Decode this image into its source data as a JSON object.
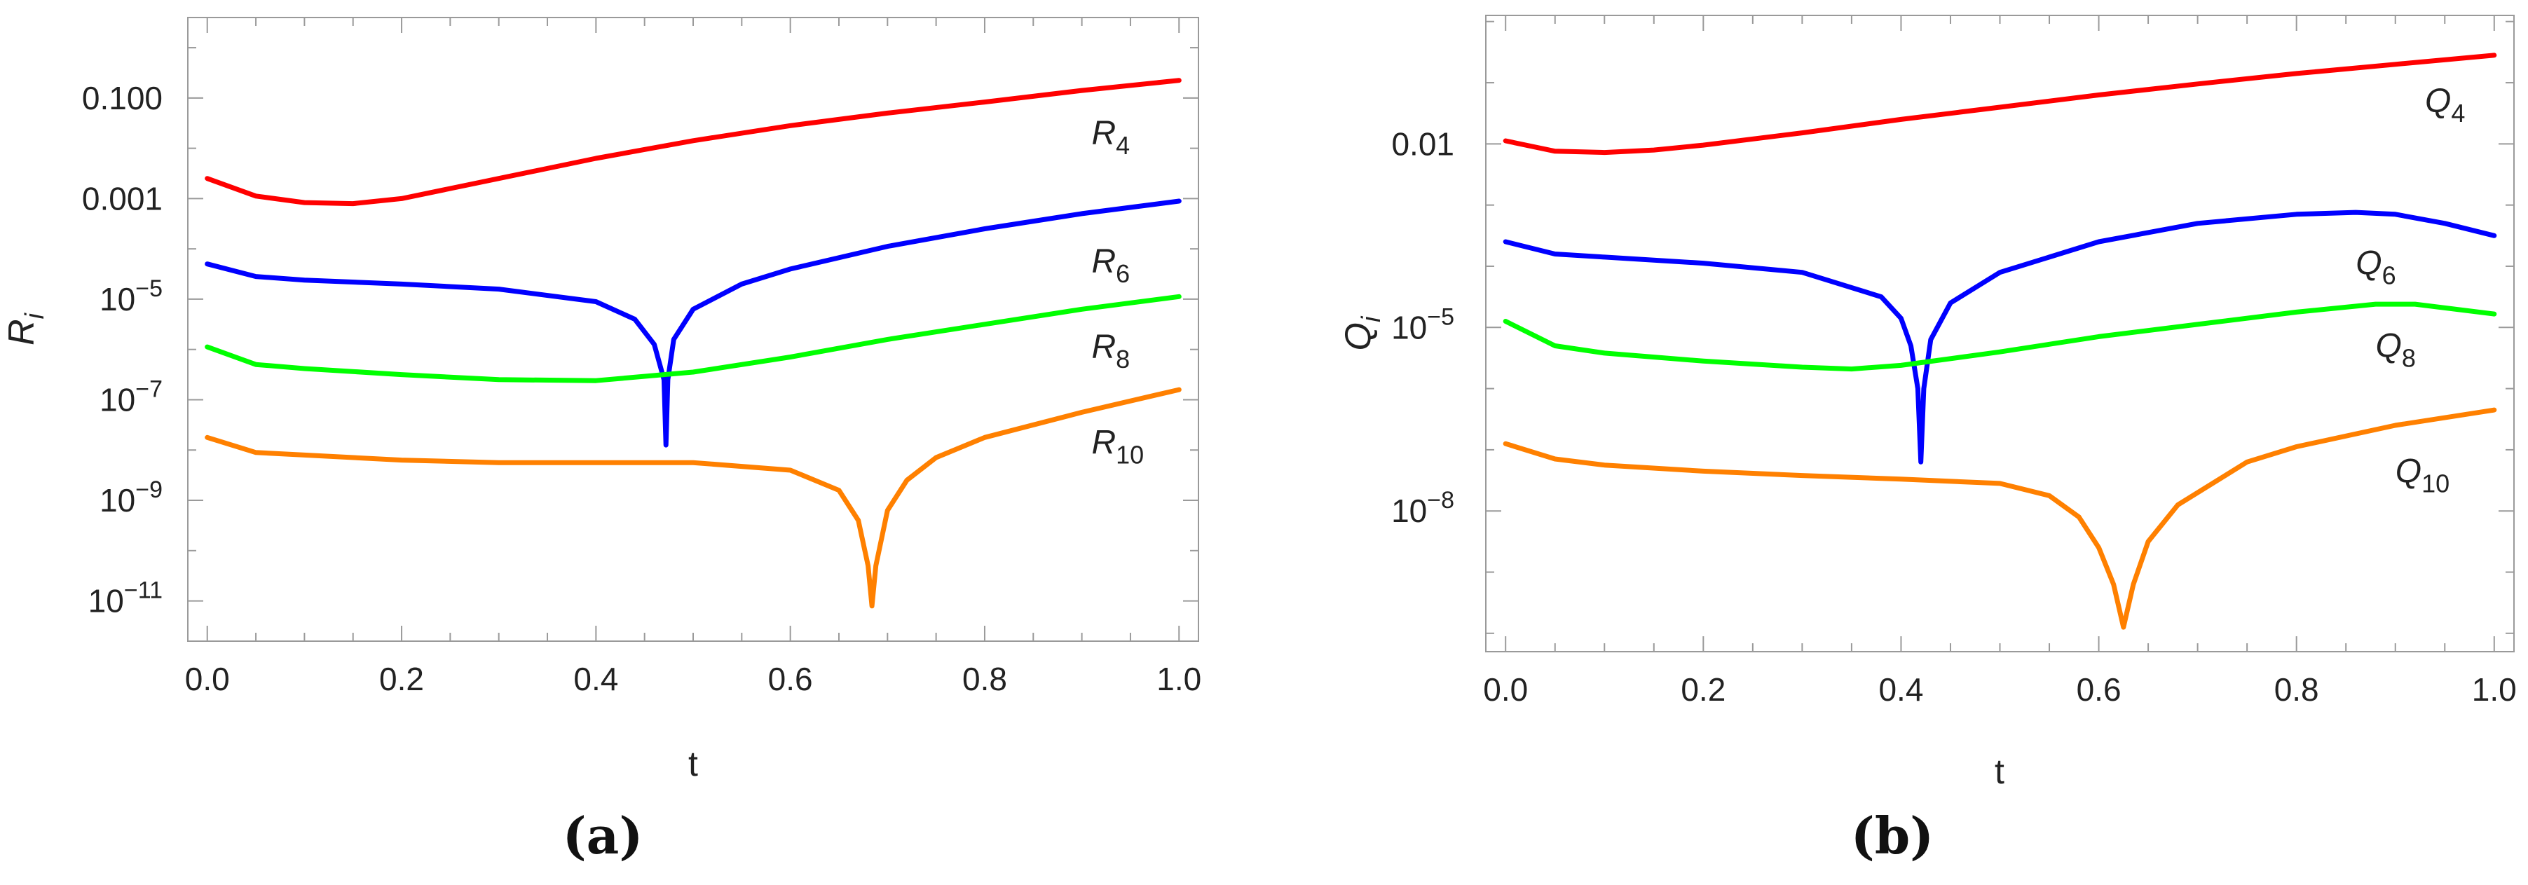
{
  "figure_captions": [
    "(a)",
    "(b)"
  ],
  "chart_data": [
    {
      "type": "line",
      "panel": "a",
      "caption": "(a)",
      "title": "",
      "xlabel": "t",
      "ylabel": "R",
      "ylabel_subscript": "i",
      "yscale": "log",
      "xlim": [
        -0.02,
        1.02
      ],
      "ylim_log10": [
        -11.8,
        0.6
      ],
      "xticks": [
        0.0,
        0.2,
        0.4,
        0.6,
        0.8,
        1.0
      ],
      "xtick_labels": [
        "0.0",
        "0.2",
        "0.4",
        "0.6",
        "0.8",
        "1.0"
      ],
      "yticks_log10": [
        -1,
        -3,
        -5,
        -7,
        -9,
        -11
      ],
      "ytick_labels": [
        {
          "base": "0.100",
          "exp": ""
        },
        {
          "base": "0.001",
          "exp": ""
        },
        {
          "base": "10",
          "exp": "−5"
        },
        {
          "base": "10",
          "exp": "−7"
        },
        {
          "base": "10",
          "exp": "−9"
        },
        {
          "base": "10",
          "exp": "−11"
        }
      ],
      "series": [
        {
          "name": "R4",
          "label": "R",
          "label_sub": "4",
          "color": "#ff0000",
          "x": [
            0.0,
            0.05,
            0.1,
            0.15,
            0.2,
            0.3,
            0.4,
            0.5,
            0.6,
            0.7,
            0.8,
            0.9,
            1.0
          ],
          "log10_y": [
            -2.6,
            -2.95,
            -3.08,
            -3.1,
            -3.0,
            -2.6,
            -2.2,
            -1.85,
            -1.55,
            -1.3,
            -1.08,
            -0.85,
            -0.65
          ],
          "label_at": [
            0.91,
            -1.7
          ]
        },
        {
          "name": "R6",
          "label": "R",
          "label_sub": "6",
          "color": "#0000ff",
          "x": [
            0.0,
            0.05,
            0.1,
            0.2,
            0.3,
            0.4,
            0.44,
            0.46,
            0.47,
            0.472,
            0.474,
            0.48,
            0.5,
            0.55,
            0.6,
            0.7,
            0.8,
            0.9,
            1.0
          ],
          "log10_y": [
            -4.3,
            -4.55,
            -4.62,
            -4.7,
            -4.8,
            -5.05,
            -5.4,
            -5.9,
            -6.6,
            -7.9,
            -6.6,
            -5.8,
            -5.2,
            -4.7,
            -4.4,
            -3.95,
            -3.6,
            -3.3,
            -3.05
          ],
          "label_at": [
            0.91,
            -4.25
          ]
        },
        {
          "name": "R8",
          "label": "R",
          "label_sub": "8",
          "color": "#00ff00",
          "x": [
            0.0,
            0.05,
            0.1,
            0.2,
            0.3,
            0.4,
            0.5,
            0.6,
            0.7,
            0.8,
            0.9,
            1.0
          ],
          "log10_y": [
            -5.95,
            -6.3,
            -6.38,
            -6.5,
            -6.6,
            -6.62,
            -6.45,
            -6.15,
            -5.8,
            -5.5,
            -5.2,
            -4.95
          ],
          "label_at": [
            0.91,
            -5.95
          ]
        },
        {
          "name": "R10",
          "label": "R",
          "label_sub": "10",
          "color": "#ff8000",
          "x": [
            0.0,
            0.05,
            0.1,
            0.2,
            0.3,
            0.4,
            0.5,
            0.6,
            0.65,
            0.67,
            0.68,
            0.684,
            0.688,
            0.7,
            0.72,
            0.75,
            0.8,
            0.9,
            1.0
          ],
          "log10_y": [
            -7.75,
            -8.05,
            -8.1,
            -8.2,
            -8.25,
            -8.25,
            -8.25,
            -8.4,
            -8.8,
            -9.4,
            -10.3,
            -11.1,
            -10.3,
            -9.2,
            -8.6,
            -8.15,
            -7.75,
            -7.25,
            -6.8
          ],
          "label_at": [
            0.91,
            -7.85
          ]
        }
      ]
    },
    {
      "type": "line",
      "panel": "b",
      "caption": "(b)",
      "title": "",
      "xlabel": "t",
      "ylabel": "Q",
      "ylabel_subscript": "i",
      "yscale": "log",
      "xlim": [
        -0.02,
        1.02
      ],
      "ylim_log10": [
        -10.3,
        0.1
      ],
      "xticks": [
        0.0,
        0.2,
        0.4,
        0.6,
        0.8,
        1.0
      ],
      "xtick_labels": [
        "0.0",
        "0.2",
        "0.4",
        "0.6",
        "0.8",
        "1.0"
      ],
      "yticks_log10": [
        -2,
        -5,
        -8
      ],
      "ytick_labels": [
        {
          "base": "0.01",
          "exp": ""
        },
        {
          "base": "10",
          "exp": "−5"
        },
        {
          "base": "10",
          "exp": "−8"
        }
      ],
      "series": [
        {
          "name": "Q4",
          "label": "Q",
          "label_sub": "4",
          "color": "#ff0000",
          "x": [
            0.0,
            0.05,
            0.1,
            0.15,
            0.2,
            0.3,
            0.4,
            0.5,
            0.6,
            0.7,
            0.8,
            0.9,
            1.0
          ],
          "log10_y": [
            -1.95,
            -2.12,
            -2.14,
            -2.1,
            -2.02,
            -1.82,
            -1.6,
            -1.4,
            -1.2,
            -1.02,
            -0.85,
            -0.7,
            -0.55
          ],
          "label_at": [
            0.93,
            -1.3
          ]
        },
        {
          "name": "Q6",
          "label": "Q",
          "label_sub": "6",
          "color": "#0000ff",
          "x": [
            0.0,
            0.05,
            0.1,
            0.2,
            0.3,
            0.38,
            0.4,
            0.41,
            0.417,
            0.42,
            0.423,
            0.43,
            0.45,
            0.5,
            0.6,
            0.7,
            0.8,
            0.86,
            0.9,
            0.95,
            1.0
          ],
          "log10_y": [
            -3.6,
            -3.8,
            -3.85,
            -3.95,
            -4.1,
            -4.5,
            -4.85,
            -5.3,
            -6.0,
            -7.2,
            -6.0,
            -5.2,
            -4.6,
            -4.1,
            -3.6,
            -3.3,
            -3.15,
            -3.12,
            -3.15,
            -3.3,
            -3.5
          ],
          "label_at": [
            0.86,
            -3.95
          ]
        },
        {
          "name": "Q8",
          "label": "Q",
          "label_sub": "8",
          "color": "#00ff00",
          "x": [
            0.0,
            0.05,
            0.1,
            0.2,
            0.3,
            0.35,
            0.4,
            0.5,
            0.6,
            0.7,
            0.8,
            0.88,
            0.92,
            1.0
          ],
          "log10_y": [
            -4.9,
            -5.3,
            -5.42,
            -5.55,
            -5.65,
            -5.68,
            -5.62,
            -5.4,
            -5.15,
            -4.95,
            -4.75,
            -4.62,
            -4.62,
            -4.78
          ],
          "label_at": [
            0.88,
            -5.3
          ]
        },
        {
          "name": "Q10",
          "label": "Q",
          "label_sub": "10",
          "color": "#ff8000",
          "x": [
            0.0,
            0.05,
            0.1,
            0.2,
            0.3,
            0.4,
            0.5,
            0.55,
            0.58,
            0.6,
            0.615,
            0.625,
            0.635,
            0.65,
            0.68,
            0.75,
            0.8,
            0.9,
            1.0
          ],
          "log10_y": [
            -6.9,
            -7.15,
            -7.25,
            -7.35,
            -7.42,
            -7.48,
            -7.55,
            -7.75,
            -8.1,
            -8.6,
            -9.2,
            -9.9,
            -9.2,
            -8.5,
            -7.9,
            -7.2,
            -6.95,
            -6.6,
            -6.35
          ],
          "label_at": [
            0.9,
            -7.35
          ]
        }
      ]
    }
  ]
}
